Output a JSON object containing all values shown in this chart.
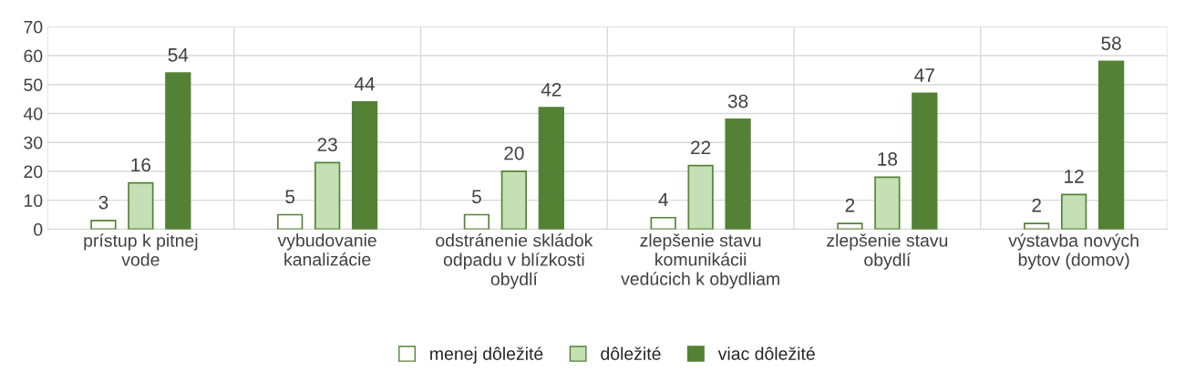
{
  "chart_data": {
    "type": "bar",
    "categories": [
      "prístup k pitnej\nvode",
      "vybudovanie\nkanalizácie",
      "odstránenie skládok\nodpadu v blízkosti\nobydlí",
      "zlepšenie stavu\nkomunikácii\nvedúcich k obydliam",
      "zlepšenie stavu\nobydlí",
      "výstavba nových\nbytov (domov)"
    ],
    "series": [
      {
        "name": "menej dôležité",
        "color": "#ffffff",
        "values": [
          3,
          5,
          5,
          4,
          2,
          2
        ]
      },
      {
        "name": "dôležité",
        "color": "#c5e0b4",
        "values": [
          16,
          23,
          20,
          22,
          18,
          12
        ]
      },
      {
        "name": "viac dôležité",
        "color": "#548235",
        "values": [
          54,
          44,
          42,
          38,
          47,
          58
        ]
      }
    ],
    "ylim": [
      0,
      70
    ],
    "yticks": [
      0,
      10,
      20,
      30,
      40,
      50,
      60,
      70
    ],
    "grid": true,
    "legend": "bottom",
    "data_labels": true
  }
}
